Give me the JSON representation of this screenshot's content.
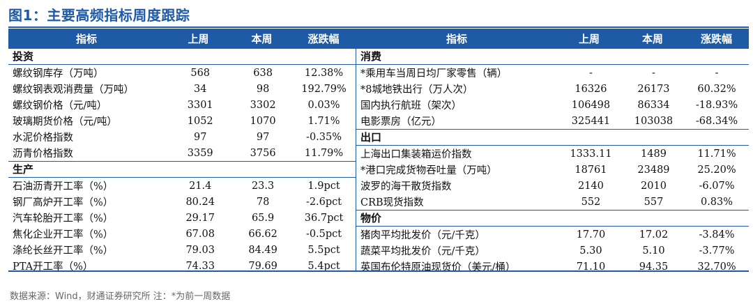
{
  "title": "图1：主要高频指标周度跟踪",
  "columns": [
    "指标",
    "上周",
    "本周",
    "涨跌幅"
  ],
  "left": {
    "sections": [
      {
        "name": "投资",
        "rows": [
          [
            "螺纹钢库存（万吨）",
            "568",
            "638",
            "12.38%"
          ],
          [
            "螺纹钢表观消费量（万吨）",
            "34",
            "98",
            "192.79%"
          ],
          [
            "螺纹钢价格（元/吨）",
            "3301",
            "3302",
            "0.03%"
          ],
          [
            "玻璃期货价格（元/吨）",
            "1052",
            "1070",
            "1.71%"
          ],
          [
            "水泥价格指数",
            "97",
            "97",
            "-0.35%"
          ],
          [
            "沥青价格指数",
            "3359",
            "3756",
            "11.79%"
          ]
        ]
      },
      {
        "name": "生产",
        "rows": [
          [
            "石油沥青开工率（%）",
            "21.4",
            "23.3",
            "1.9pct"
          ],
          [
            "钢厂高炉开工率（%）",
            "80.24",
            "78",
            "-2.6pct"
          ],
          [
            "汽车轮胎开工率（%）",
            "29.17",
            "65.9",
            "36.7pct"
          ],
          [
            "焦化企业开工率（%）",
            "67.08",
            "66.62",
            "-0.5pct"
          ],
          [
            "涤纶长丝开工率（%）",
            "79.03",
            "84.49",
            "5.5pct"
          ],
          [
            "PTA开工率（%）",
            "74.33",
            "79.69",
            "5.4pct"
          ]
        ]
      }
    ]
  },
  "right": {
    "sections": [
      {
        "name": "消费",
        "rows": [
          [
            "*乘用车当周日均厂家零售（辆）",
            "-",
            "-",
            "-"
          ],
          [
            "*8城地铁出行（万人次）",
            "16326",
            "26173",
            "60.32%"
          ],
          [
            "国内执行航班（架次）",
            "106498",
            "86334",
            "-18.93%"
          ],
          [
            "电影票房（亿元）",
            "325441",
            "103038",
            "-68.34%"
          ]
        ]
      },
      {
        "name": "出口",
        "rows": [
          [
            "上海出口集装箱运价指数",
            "1333.11",
            "1489",
            "11.71%"
          ],
          [
            "*港口完成货物吞吐量（万吨）",
            "18761",
            "23489",
            "25.20%"
          ],
          [
            "波罗的海干散货指数",
            "2140",
            "2010",
            "-6.07%"
          ],
          [
            "CRB现货指数",
            "552",
            "557",
            "0.83%"
          ]
        ]
      },
      {
        "name": "物价",
        "rows": [
          [
            "猪肉平均批发价（元/千克）",
            "17.70",
            "17.02",
            "-3.84%"
          ],
          [
            "蔬菜平均批发价（元/千克）",
            "5.30",
            "5.10",
            "-3.77%"
          ],
          [
            "英国布伦特原油现货价（美元/桶）",
            "71.10",
            "94.35",
            "32.70%"
          ]
        ]
      }
    ]
  },
  "footer": "数据来源：Wind，财通证券研究所 注：*为前一周数据",
  "colors": {
    "accent": "#1f5aa6"
  }
}
